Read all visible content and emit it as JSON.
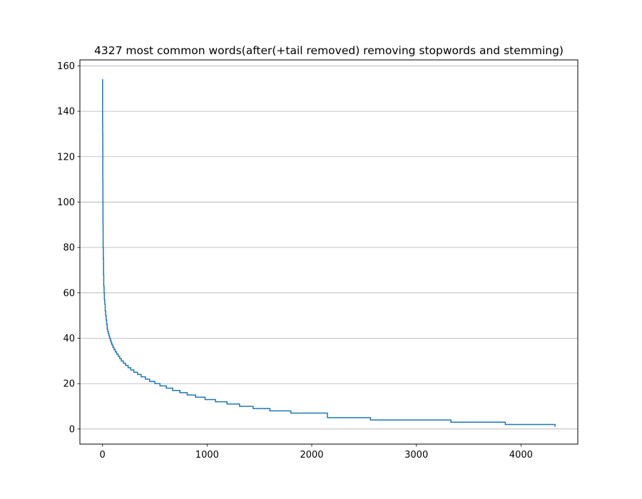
{
  "chart_data": {
    "type": "line",
    "title": "4327 most common words(after(+tail removed) removing stopwords and stemming)",
    "xlabel": "",
    "ylabel": "",
    "xlim": [
      -216,
      4543
    ],
    "ylim": [
      -6.65,
      162.65
    ],
    "xticks": [
      0,
      1000,
      2000,
      3000,
      4000
    ],
    "yticks": [
      0,
      20,
      40,
      60,
      80,
      100,
      120,
      140,
      160
    ],
    "grid": "y-axis only",
    "line_color": "#1f77b4",
    "series": [
      {
        "drawstyle": "steps",
        "x": [
          0,
          1,
          2,
          3,
          4,
          5,
          6,
          8,
          10,
          12,
          15,
          18,
          22,
          26,
          30,
          35,
          40,
          45,
          50,
          56,
          62,
          68,
          75,
          82,
          90,
          100,
          110,
          122,
          135,
          150,
          165,
          180,
          200,
          220,
          245,
          270,
          300,
          335,
          370,
          410,
          450,
          500,
          550,
          610,
          670,
          740,
          810,
          890,
          980,
          1080,
          1190,
          1310,
          1440,
          1600,
          1800,
          2150,
          2560,
          3330,
          3850,
          4326
        ],
        "y": [
          154,
          135,
          130,
          110,
          100,
          90,
          80,
          75,
          68,
          63,
          60,
          57,
          55,
          52,
          50,
          48,
          46,
          44,
          43,
          42,
          41,
          40,
          39,
          38,
          37,
          36,
          35,
          34,
          33,
          32,
          31,
          30,
          29,
          28,
          27,
          26,
          25,
          24,
          23,
          22,
          21,
          20,
          19,
          18,
          17,
          16,
          15,
          14,
          13,
          12,
          11,
          10,
          9,
          8,
          7,
          5,
          4,
          3,
          2,
          1
        ]
      }
    ]
  }
}
